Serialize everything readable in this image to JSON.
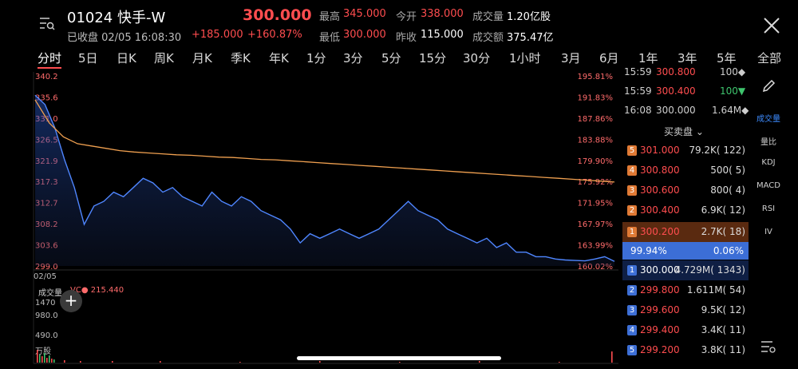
{
  "header": {
    "code_name": "01024 快手-W",
    "last_price": "300.000",
    "status": "已收盘 02/05 16:08:30",
    "change": "+185.000",
    "change_pct": "+160.87%",
    "high_label": "最高",
    "high": "345.000",
    "open_label": "今开",
    "open": "338.000",
    "volume_label": "成交量",
    "volume": "1.20亿股",
    "low_label": "最低",
    "low": "300.000",
    "prev_close_label": "昨收",
    "prev_close": "115.000",
    "turnover_label": "成交额",
    "turnover": "375.47亿"
  },
  "tabs": [
    "分时",
    "5日",
    "日K",
    "周K",
    "月K",
    "季K",
    "年K",
    "1分",
    "3分",
    "5分",
    "15分",
    "30分",
    "1小时",
    "3月",
    "6月",
    "1年",
    "3年",
    "5年",
    "全部"
  ],
  "chart_data": {
    "type": "line",
    "date_label": "02/05",
    "y_ticks_price": [
      "340.2",
      "335.6",
      "331.0",
      "326.5",
      "321.9",
      "317.3",
      "312.7",
      "308.2",
      "303.6",
      "299.0"
    ],
    "y_ticks_pct": [
      "195.81%",
      "191.83%",
      "187.86%",
      "183.88%",
      "179.90%",
      "175.92%",
      "171.95%",
      "167.97%",
      "163.99%",
      "160.02%"
    ],
    "ylim": [
      299.0,
      340.2
    ],
    "series": [
      {
        "values": [
          336,
          334,
          329,
          322,
          316,
          308,
          312,
          313,
          315,
          314,
          316,
          318,
          317,
          315,
          316,
          314,
          313,
          312,
          315,
          313,
          312,
          314,
          313,
          311,
          310,
          309,
          307,
          304,
          306,
          305,
          306,
          307,
          306,
          305,
          306,
          307,
          309,
          311,
          313,
          311,
          310,
          309,
          307,
          306,
          305,
          304,
          305,
          303,
          304,
          302,
          302,
          301,
          301,
          300.5,
          300.3,
          300.2,
          300.1,
          300.5,
          301,
          300
        ]
      },
      {
        "values": [
          335,
          330,
          327,
          325.5,
          325,
          324.5,
          324,
          323.7,
          323.5,
          323.3,
          323.1,
          323,
          322.8,
          322.6,
          322.5,
          322.3,
          322.1,
          322,
          321.8,
          321.6,
          321.4,
          321.2,
          321,
          320.8,
          320.6,
          320.4,
          320.2,
          320,
          319.8,
          319.6,
          319.4,
          319.2,
          319,
          318.8,
          318.6,
          318.4,
          318.2,
          318,
          317.8,
          317.6,
          317.4,
          317.2
        ]
      }
    ],
    "volume_title": "成交量",
    "vc_label": "VC● 215.440",
    "volume_ticks": [
      "1470",
      "980.0",
      "490.0",
      "万股"
    ]
  },
  "ticks": [
    {
      "time": "15:59",
      "price": "300.800",
      "vol": "100◆"
    },
    {
      "time": "15:59",
      "price": "300.400",
      "vol": "100▼"
    },
    {
      "time": "16:08",
      "price": "300.000",
      "vol": "1.64M◆"
    }
  ],
  "orderbook_title": "买卖盘 ⌄",
  "asks": [
    {
      "n": "5",
      "price": "301.000",
      "vol": "79.2K( 122)"
    },
    {
      "n": "4",
      "price": "300.800",
      "vol": "500(   5)"
    },
    {
      "n": "3",
      "price": "300.600",
      "vol": "800(   4)"
    },
    {
      "n": "2",
      "price": "300.400",
      "vol": "6.9K(  12)"
    },
    {
      "n": "1",
      "price": "300.200",
      "vol": "2.7K(  18)"
    }
  ],
  "ratio": {
    "left": "99.94%",
    "right": "0.06%"
  },
  "bids": [
    {
      "n": "1",
      "price": "300.000",
      "vol": "4.729M( 1343)"
    },
    {
      "n": "2",
      "price": "299.800",
      "vol": "1.611M(  54)"
    },
    {
      "n": "3",
      "price": "299.600",
      "vol": "9.5K(  12)"
    },
    {
      "n": "4",
      "price": "299.400",
      "vol": "3.4K(  11)"
    },
    {
      "n": "5",
      "price": "299.200",
      "vol": "3.8K(  11)"
    }
  ],
  "sidebar": [
    "成交量",
    "量比",
    "KDJ",
    "MACD",
    "RSI",
    "IV"
  ],
  "colors": {
    "accent": "#3d8bff",
    "up": "#ff4d4f",
    "ask_badge": "#e07a35",
    "bid_badge": "#3d6fd6"
  }
}
